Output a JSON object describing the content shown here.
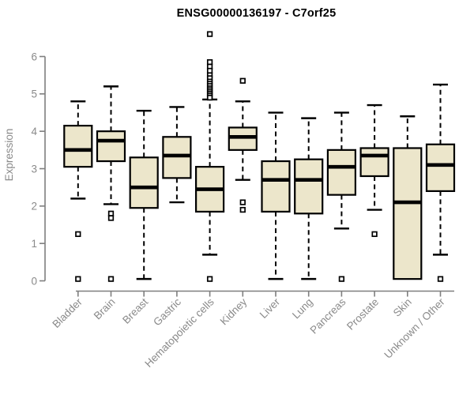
{
  "chart_data": {
    "type": "boxplot",
    "title": "ENSG00000136197 - C7orf25",
    "xlabel": "",
    "ylabel": "Expression",
    "ylim": [
      0,
      6.7
    ],
    "yticks": [
      0,
      1,
      2,
      3,
      4,
      5,
      6
    ],
    "grid": false,
    "legend": false,
    "outlier_marker": "open-square",
    "whisker_style": "dashed",
    "colors": {
      "box_fill": "#ECE6CB",
      "box_border": "#000000",
      "median": "#000000",
      "axis_line": "#7f7f7f",
      "tick_label": "#8a8a8a",
      "title": "#000000",
      "background": "#ffffff"
    },
    "categories": [
      "Bladder",
      "Brain",
      "Breast",
      "Gastric",
      "Hematopoietic cells",
      "Kidney",
      "Liver",
      "Lung",
      "Pancreas",
      "Prostate",
      "Skin",
      "Unknown / Other"
    ],
    "boxes": [
      {
        "category": "Bladder",
        "whisker_low": 2.2,
        "q1": 3.05,
        "median": 3.5,
        "q3": 4.15,
        "whisker_high": 4.8,
        "outliers": [
          1.25,
          0.05
        ]
      },
      {
        "category": "Brain",
        "whisker_low": 2.05,
        "q1": 3.2,
        "median": 3.75,
        "q3": 4.0,
        "whisker_high": 5.2,
        "outliers": [
          1.8,
          1.68,
          0.05
        ]
      },
      {
        "category": "Breast",
        "whisker_low": 0.05,
        "q1": 1.95,
        "median": 2.5,
        "q3": 3.3,
        "whisker_high": 4.55,
        "outliers": []
      },
      {
        "category": "Gastric",
        "whisker_low": 2.1,
        "q1": 2.75,
        "median": 3.35,
        "q3": 3.85,
        "whisker_high": 4.65,
        "outliers": []
      },
      {
        "category": "Hematopoietic cells",
        "whisker_low": 0.7,
        "q1": 1.85,
        "median": 2.45,
        "q3": 3.05,
        "whisker_high": 4.85,
        "outliers": [
          6.6,
          5.85,
          5.73,
          5.62,
          5.5,
          5.42,
          5.33,
          5.27,
          5.21,
          5.15,
          5.1,
          5.05,
          5.0,
          4.95,
          4.9,
          0.05
        ]
      },
      {
        "category": "Kidney",
        "whisker_low": 2.7,
        "q1": 3.5,
        "median": 3.85,
        "q3": 4.1,
        "whisker_high": 4.8,
        "outliers": [
          5.35,
          2.1,
          1.9
        ]
      },
      {
        "category": "Liver",
        "whisker_low": 0.05,
        "q1": 1.85,
        "median": 2.7,
        "q3": 3.2,
        "whisker_high": 4.5,
        "outliers": []
      },
      {
        "category": "Lung",
        "whisker_low": 0.05,
        "q1": 1.8,
        "median": 2.7,
        "q3": 3.25,
        "whisker_high": 4.35,
        "outliers": []
      },
      {
        "category": "Pancreas",
        "whisker_low": 1.4,
        "q1": 2.3,
        "median": 3.05,
        "q3": 3.5,
        "whisker_high": 4.5,
        "outliers": [
          0.05
        ]
      },
      {
        "category": "Prostate",
        "whisker_low": 1.9,
        "q1": 2.8,
        "median": 3.35,
        "q3": 3.55,
        "whisker_high": 4.7,
        "outliers": [
          1.25
        ]
      },
      {
        "category": "Skin",
        "whisker_low": 0.05,
        "q1": 0.05,
        "median": 2.1,
        "q3": 3.55,
        "whisker_high": 4.4,
        "outliers": []
      },
      {
        "category": "Unknown / Other",
        "whisker_low": 0.7,
        "q1": 2.4,
        "median": 3.1,
        "q3": 3.65,
        "whisker_high": 5.25,
        "outliers": [
          0.05
        ]
      }
    ]
  }
}
